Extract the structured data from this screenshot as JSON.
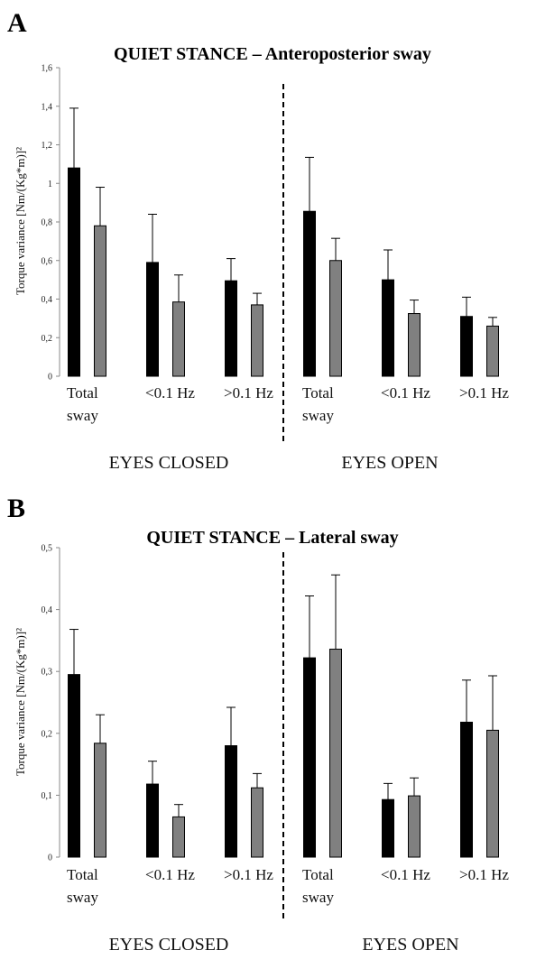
{
  "panels": [
    {
      "letter": "A",
      "chart_data": {
        "type": "bar",
        "title": "QUIET STANCE – Anteroposterior sway",
        "ylabel": "Torque variance  [Nm/(Kg*m)]²",
        "ylim": [
          0,
          1.6
        ],
        "yticks": [
          "0",
          "0,2",
          "0,4",
          "0,6",
          "0,8",
          "1",
          "1,2",
          "1,4",
          "1,6"
        ],
        "categories": [
          [
            "Total",
            "sway"
          ],
          [
            "<0.1 Hz"
          ],
          [
            ">0.1 Hz"
          ],
          [
            "Total",
            "sway"
          ],
          [
            "<0.1 Hz"
          ],
          [
            ">0.1 Hz"
          ]
        ],
        "groups": [
          "EYES CLOSED",
          "EYES OPEN"
        ],
        "series": [
          {
            "color": "#000000",
            "values": [
              1.08,
              0.59,
              0.495,
              0.855,
              0.5,
              0.31
            ],
            "errors": [
              0.31,
              0.25,
              0.115,
              0.28,
              0.155,
              0.1
            ]
          },
          {
            "color": "#808080",
            "values": [
              0.78,
              0.385,
              0.37,
              0.6,
              0.325,
              0.26
            ],
            "errors": [
              0.2,
              0.14,
              0.06,
              0.115,
              0.07,
              0.045
            ]
          }
        ]
      }
    },
    {
      "letter": "B",
      "chart_data": {
        "type": "bar",
        "title": "QUIET STANCE – Lateral sway",
        "ylabel": "Torque variance  [Nm/(Kg*m)]²",
        "ylim": [
          0,
          0.5
        ],
        "yticks": [
          "0",
          "0,1",
          "0,2",
          "0,3",
          "0,4",
          "0,5"
        ],
        "categories": [
          [
            "Total",
            "sway"
          ],
          [
            "<0.1 Hz"
          ],
          [
            ">0.1 Hz"
          ],
          [
            "Total",
            "sway"
          ],
          [
            "<0.1 Hz"
          ],
          [
            ">0.1 Hz"
          ]
        ],
        "groups": [
          "EYES CLOSED",
          "EYES OPEN"
        ],
        "series": [
          {
            "color": "#000000",
            "values": [
              0.295,
              0.118,
              0.18,
              0.322,
              0.093,
              0.218
            ],
            "errors": [
              0.073,
              0.037,
              0.062,
              0.1,
              0.026,
              0.068
            ]
          },
          {
            "color": "#808080",
            "values": [
              0.184,
              0.065,
              0.112,
              0.336,
              0.099,
              0.205
            ],
            "errors": [
              0.046,
              0.02,
              0.023,
              0.12,
              0.029,
              0.088
            ]
          }
        ]
      }
    }
  ]
}
